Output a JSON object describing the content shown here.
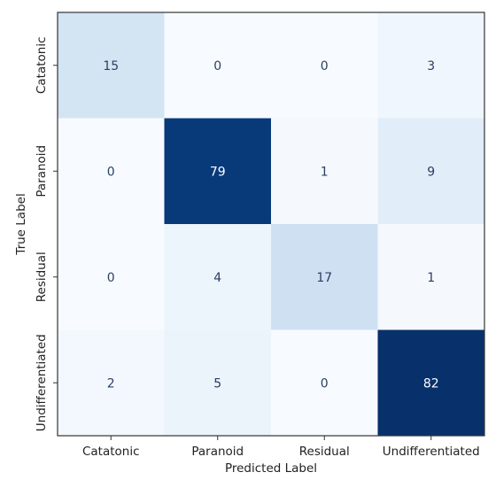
{
  "chart_data": {
    "type": "heatmap",
    "title": "",
    "xlabel": "Predicted Label",
    "ylabel": "True Label",
    "x_categories": [
      "Catatonic",
      "Paranoid",
      "Residual",
      "Undifferentiated"
    ],
    "y_categories": [
      "Catatonic",
      "Paranoid",
      "Residual",
      "Undifferentiated"
    ],
    "values": [
      [
        15,
        0,
        0,
        3
      ],
      [
        0,
        79,
        1,
        9
      ],
      [
        0,
        4,
        17,
        1
      ],
      [
        2,
        5,
        0,
        82
      ]
    ],
    "colormap": "Blues",
    "colorbar": false,
    "grid": false
  }
}
